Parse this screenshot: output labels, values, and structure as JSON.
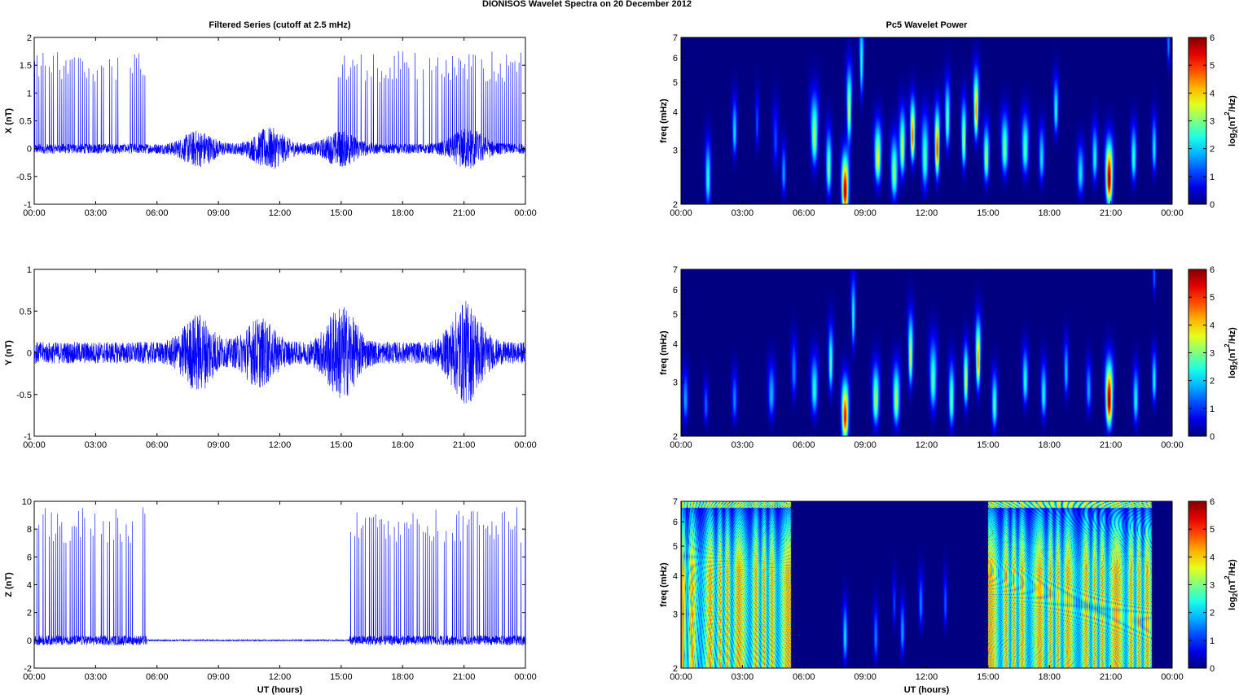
{
  "suptitle": "DIONISOS Wavelet Spectra on 20 December  2012",
  "left_title": "Filtered Series (cutoff at 2.5 mHz)",
  "right_title": "Pc5 Wavelet Power",
  "colors": {
    "trace": "#0000ff",
    "spectrum_background": "#00008f"
  },
  "chart_data": [
    {
      "type": "line",
      "ylabel": "X (nT)",
      "xlabel": "",
      "ylim": [
        -1,
        2
      ],
      "yticks": [
        "-1",
        "-0.5",
        "0",
        "0.5",
        "1",
        "1.5",
        "2"
      ],
      "xlim_hours": [
        0,
        24
      ],
      "xticks": [
        "00:00",
        "03:00",
        "06:00",
        "09:00",
        "12:00",
        "15:00",
        "18:00",
        "21:00",
        "00:00"
      ],
      "series": [
        {
          "noise_amplitude": 0.09,
          "active_intervals_hours": [
            [
              0.0,
              5.5
            ],
            [
              14.8,
              24.0
            ]
          ],
          "spike_peak_range": [
            1.2,
            1.75
          ],
          "disturbed_intervals": [
            {
              "center": 8,
              "amp": 0.25
            },
            {
              "center": 11.5,
              "amp": 0.3
            },
            {
              "center": 15,
              "amp": 0.25
            },
            {
              "center": 21.2,
              "amp": 0.3
            }
          ]
        }
      ]
    },
    {
      "type": "line",
      "ylabel": "Y (nT)",
      "xlabel": "",
      "ylim": [
        -1,
        1
      ],
      "yticks": [
        "-1",
        "-0.5",
        "0",
        "0.5",
        "1"
      ],
      "xlim_hours": [
        0,
        24
      ],
      "xticks": [
        "00:00",
        "03:00",
        "06:00",
        "09:00",
        "12:00",
        "15:00",
        "18:00",
        "21:00",
        "00:00"
      ],
      "series": [
        {
          "noise_amplitude": 0.13,
          "active_intervals_hours": [],
          "spike_peak_range": [
            0,
            0
          ],
          "disturbed_intervals": [
            {
              "center": 8,
              "amp": 0.35
            },
            {
              "center": 11,
              "amp": 0.3
            },
            {
              "center": 15,
              "amp": 0.45
            },
            {
              "center": 21.1,
              "amp": 0.5
            }
          ]
        }
      ]
    },
    {
      "type": "line",
      "ylabel": "Z (nT)",
      "xlabel": "UT (hours)",
      "ylim": [
        -2,
        10
      ],
      "yticks": [
        "-2",
        "0",
        "2",
        "4",
        "6",
        "8",
        "10"
      ],
      "xlim_hours": [
        0,
        24
      ],
      "xticks": [
        "00:00",
        "03:00",
        "06:00",
        "09:00",
        "12:00",
        "15:00",
        "18:00",
        "21:00",
        "00:00"
      ],
      "series": [
        {
          "noise_amplitude": 0.35,
          "quiet_interval_hours": [
            5.5,
            15.4
          ],
          "quiet_amplitude": 0.05,
          "active_intervals_hours": [
            [
              0.0,
              5.5
            ],
            [
              15.4,
              24.0
            ]
          ],
          "spike_peak_range": [
            7.0,
            9.6
          ],
          "disturbed_intervals": []
        }
      ]
    },
    {
      "type": "heatmap",
      "ylabel": "freq (mHz)",
      "xlabel": "",
      "log_y": true,
      "ylim_mHz": [
        2,
        7
      ],
      "yticks": [
        "2",
        "3",
        "4",
        "5",
        "6",
        "7"
      ],
      "xlim_hours": [
        0,
        24
      ],
      "xticks": [
        "00:00",
        "03:00",
        "06:00",
        "09:00",
        "12:00",
        "15:00",
        "18:00",
        "21:00",
        "00:00"
      ],
      "colorbar": {
        "label_main": "log",
        "label_sub": "2",
        "label_rest": "(nT",
        "label_sup": "2",
        "label_end": "/Hz)",
        "range": [
          0,
          6
        ],
        "ticks": [
          "0",
          "1",
          "2",
          "3",
          "4",
          "5",
          "6"
        ]
      },
      "blobs": [
        [
          1.3,
          2.4,
          2.5,
          2.5,
          0.12
        ],
        [
          2.6,
          3.4,
          2.1,
          2.2,
          0.1
        ],
        [
          3.7,
          3.6,
          2.0,
          1.3,
          0.08
        ],
        [
          4.6,
          3.2,
          2.5,
          1.2,
          0.12
        ],
        [
          5.0,
          2.5,
          1.8,
          1.8,
          0.1
        ],
        [
          6.5,
          3.3,
          2.8,
          3.3,
          0.15
        ],
        [
          7.2,
          2.6,
          2.4,
          3.0,
          0.12
        ],
        [
          8.0,
          2.2,
          2.2,
          5.8,
          0.15
        ],
        [
          8.2,
          4.0,
          3.0,
          3.5,
          0.1
        ],
        [
          8.8,
          5.7,
          3.5,
          2.6,
          0.08
        ],
        [
          9.6,
          2.8,
          2.2,
          3.7,
          0.15
        ],
        [
          10.4,
          2.5,
          2.3,
          3.2,
          0.15
        ],
        [
          10.8,
          3.0,
          2.5,
          3.5,
          0.12
        ],
        [
          11.3,
          3.3,
          2.2,
          4.8,
          0.1
        ],
        [
          11.9,
          2.8,
          3.0,
          2.8,
          0.15
        ],
        [
          12.5,
          3.0,
          2.5,
          5.0,
          0.1
        ],
        [
          13.0,
          3.7,
          2.6,
          3.0,
          0.1
        ],
        [
          13.8,
          3.2,
          2.5,
          3.5,
          0.1
        ],
        [
          14.4,
          4.0,
          2.5,
          4.5,
          0.1
        ],
        [
          14.9,
          2.8,
          2.0,
          3.3,
          0.12
        ],
        [
          15.8,
          3.0,
          2.2,
          3.0,
          0.15
        ],
        [
          16.8,
          3.0,
          2.2,
          2.8,
          0.15
        ],
        [
          17.6,
          2.8,
          2.0,
          2.2,
          0.12
        ],
        [
          18.3,
          4.0,
          2.0,
          2.5,
          0.1
        ],
        [
          19.5,
          2.5,
          1.8,
          2.2,
          0.15
        ],
        [
          20.2,
          2.8,
          2.0,
          2.4,
          0.12
        ],
        [
          20.9,
          2.4,
          2.3,
          6.0,
          0.15
        ],
        [
          22.1,
          2.8,
          2.0,
          2.6,
          0.12
        ],
        [
          23.1,
          3.0,
          2.0,
          2.3,
          0.1
        ],
        [
          23.8,
          6.6,
          1.8,
          1.6,
          0.07
        ]
      ]
    },
    {
      "type": "heatmap",
      "ylabel": "freq (mHz)",
      "xlabel": "",
      "log_y": true,
      "ylim_mHz": [
        2,
        7
      ],
      "yticks": [
        "2",
        "3",
        "4",
        "5",
        "6",
        "7"
      ],
      "xlim_hours": [
        0,
        24
      ],
      "xticks": [
        "00:00",
        "03:00",
        "06:00",
        "09:00",
        "12:00",
        "15:00",
        "18:00",
        "21:00",
        "00:00"
      ],
      "colorbar": {
        "label_main": "log",
        "label_sub": "2",
        "label_rest": "(nT",
        "label_sup": "2",
        "label_end": "/Hz)",
        "range": [
          0,
          6
        ],
        "ticks": [
          "0",
          "1",
          "2",
          "3",
          "4",
          "5",
          "6"
        ]
      },
      "blobs": [
        [
          0.2,
          2.6,
          1.8,
          1.8,
          0.12
        ],
        [
          1.2,
          2.5,
          1.5,
          1.4,
          0.1
        ],
        [
          2.6,
          2.6,
          1.8,
          1.6,
          0.12
        ],
        [
          4.4,
          2.7,
          2.0,
          1.9,
          0.15
        ],
        [
          5.5,
          3.2,
          2.2,
          1.6,
          0.12
        ],
        [
          6.5,
          2.8,
          2.2,
          2.5,
          0.15
        ],
        [
          7.3,
          3.4,
          2.5,
          2.8,
          0.1
        ],
        [
          8.0,
          2.3,
          2.2,
          5.3,
          0.15
        ],
        [
          8.4,
          4.8,
          2.8,
          2.5,
          0.08
        ],
        [
          9.5,
          2.6,
          2.2,
          3.3,
          0.15
        ],
        [
          10.5,
          2.6,
          2.2,
          3.3,
          0.15
        ],
        [
          11.2,
          3.6,
          2.8,
          3.5,
          0.1
        ],
        [
          12.3,
          3.0,
          2.8,
          2.8,
          0.15
        ],
        [
          13.2,
          2.6,
          2.4,
          3.0,
          0.12
        ],
        [
          13.9,
          3.0,
          2.2,
          3.6,
          0.1
        ],
        [
          14.5,
          3.5,
          2.6,
          4.5,
          0.1
        ],
        [
          15.3,
          2.5,
          2.0,
          2.8,
          0.12
        ],
        [
          16.8,
          3.0,
          2.0,
          2.5,
          0.12
        ],
        [
          17.7,
          2.7,
          2.0,
          2.4,
          0.12
        ],
        [
          18.8,
          3.2,
          2.0,
          2.0,
          0.1
        ],
        [
          19.9,
          2.8,
          1.8,
          1.8,
          0.12
        ],
        [
          20.9,
          2.6,
          2.4,
          6.0,
          0.15
        ],
        [
          22.2,
          2.6,
          2.0,
          2.4,
          0.12
        ],
        [
          23.1,
          3.0,
          1.8,
          2.4,
          0.1
        ],
        [
          23.1,
          6.6,
          1.6,
          1.4,
          0.07
        ]
      ]
    },
    {
      "type": "heatmap",
      "ylabel": "freq (mHz)",
      "xlabel": "UT (hours)",
      "log_y": true,
      "ylim_mHz": [
        2,
        7
      ],
      "yticks": [
        "2",
        "3",
        "4",
        "5",
        "6",
        "7"
      ],
      "xlim_hours": [
        0,
        24
      ],
      "xticks": [
        "00:00",
        "03:00",
        "06:00",
        "09:00",
        "12:00",
        "15:00",
        "18:00",
        "21:00",
        "00:00"
      ],
      "colorbar": {
        "label_main": "log",
        "label_sub": "2",
        "label_rest": "(nT",
        "label_sup": "2",
        "label_end": "/Hz)",
        "range": [
          0,
          6
        ],
        "ticks": [
          "0",
          "1",
          "2",
          "3",
          "4",
          "5",
          "6"
        ]
      },
      "active_intervals_hours": [
        [
          0.0,
          5.35
        ],
        [
          15.0,
          23.0
        ]
      ],
      "active_power": 6.0,
      "blobs": [
        [
          8.0,
          2.5,
          2.2,
          2.2,
          0.1
        ],
        [
          9.5,
          2.5,
          2.0,
          1.6,
          0.1
        ],
        [
          10.8,
          2.6,
          2.0,
          1.8,
          0.1
        ],
        [
          11.7,
          3.2,
          2.0,
          1.6,
          0.1
        ],
        [
          12.9,
          3.2,
          2.0,
          1.4,
          0.08
        ],
        [
          10.4,
          3.2,
          1.8,
          1.2,
          0.08
        ]
      ]
    }
  ]
}
